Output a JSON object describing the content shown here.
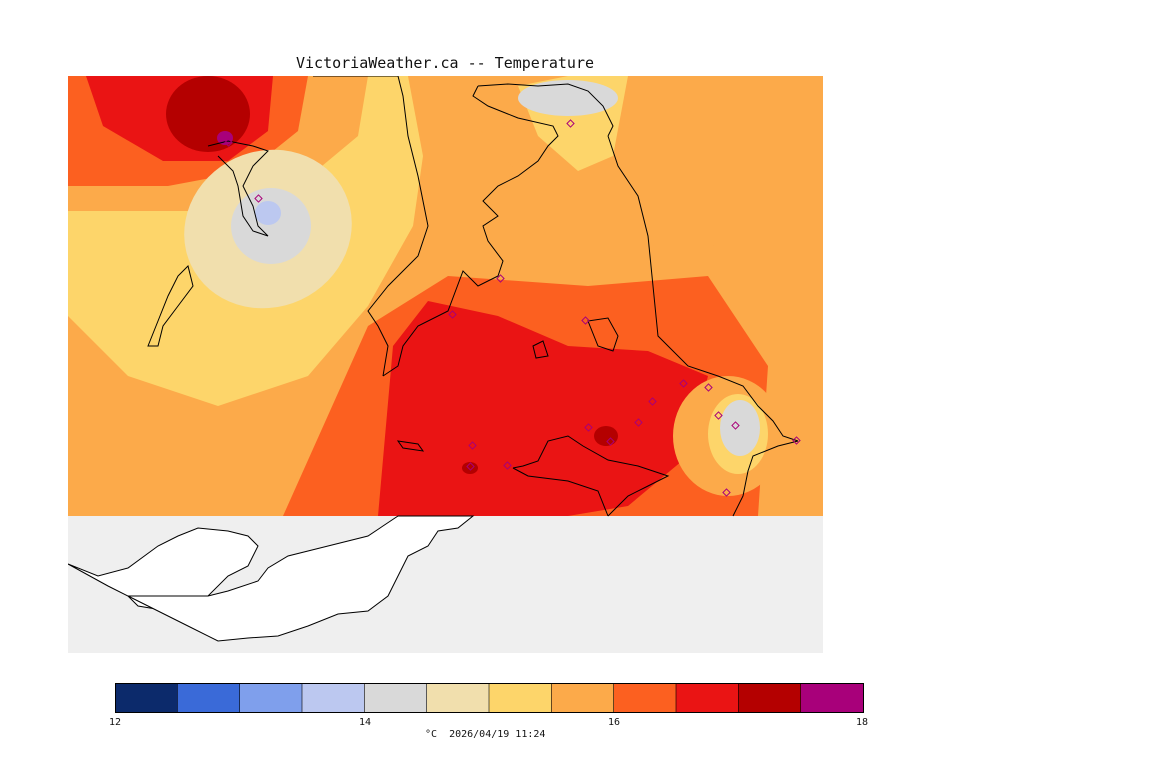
{
  "title": "VictoriaWeather.ca -- Temperature",
  "legend": {
    "colors": [
      "#0c2a6b",
      "#3a6ad8",
      "#7f9fec",
      "#bcc8f0",
      "#d9d9d9",
      "#f1dfad",
      "#fdd56a",
      "#fcaa4a",
      "#fc6020",
      "#ea1414",
      "#b40000",
      "#a8007a"
    ],
    "min": 12,
    "max": 18,
    "tick_labels": [
      "12",
      "14",
      "16",
      "18"
    ]
  },
  "footer": "°C  2026/04/19 11:24",
  "colors": {
    "background": "#efefef",
    "land_outline": "#000000"
  }
}
